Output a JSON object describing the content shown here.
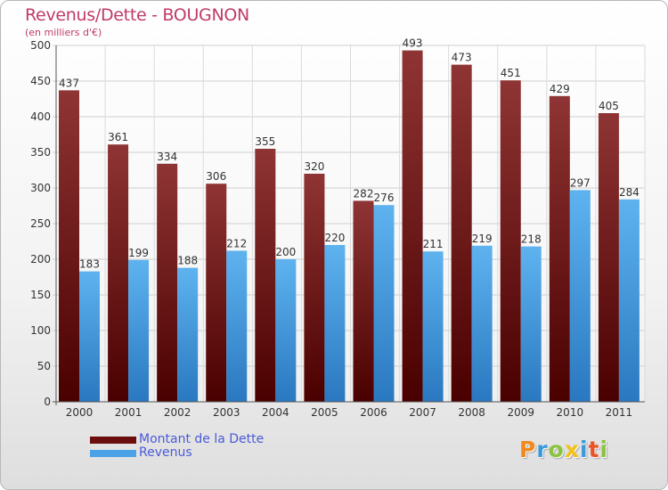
{
  "header": {
    "title": "Revenus/Dette - BOUGNON",
    "subtitle": "(en milliers d'€)"
  },
  "chart_data": {
    "type": "bar",
    "categories": [
      "2000",
      "2001",
      "2002",
      "2003",
      "2004",
      "2005",
      "2006",
      "2007",
      "2008",
      "2009",
      "2010",
      "2011"
    ],
    "series": [
      {
        "name": "Montant de la Dette",
        "color": "#8b2525",
        "values": [
          437,
          361,
          334,
          306,
          355,
          320,
          282,
          493,
          473,
          451,
          429,
          405
        ]
      },
      {
        "name": "Revenus",
        "color": "#4aa3e6",
        "values": [
          183,
          199,
          188,
          212,
          200,
          220,
          276,
          211,
          219,
          218,
          297,
          284
        ]
      }
    ],
    "ylim": [
      0,
      500
    ],
    "yticks": [
      0,
      50,
      100,
      150,
      200,
      250,
      300,
      350,
      400,
      450,
      500
    ],
    "grid": true,
    "legend_position": "bottom-left"
  },
  "legend": {
    "items": [
      {
        "label": "Montant de la Dette",
        "color": "#6b0d0d"
      },
      {
        "label": "Revenus",
        "color": "#4aa3e6"
      }
    ]
  },
  "logo": {
    "text": "Proxiti",
    "letters": [
      {
        "ch": "P",
        "color": "#f08a1c"
      },
      {
        "ch": "r",
        "color": "#3a9ad9"
      },
      {
        "ch": "o",
        "color": "#8ac43f"
      },
      {
        "ch": "x",
        "color": "#f2c21b"
      },
      {
        "ch": "i",
        "color": "#3a9ad9"
      },
      {
        "ch": "t",
        "color": "#e8542a"
      },
      {
        "ch": "i",
        "color": "#8ac43f"
      }
    ]
  }
}
